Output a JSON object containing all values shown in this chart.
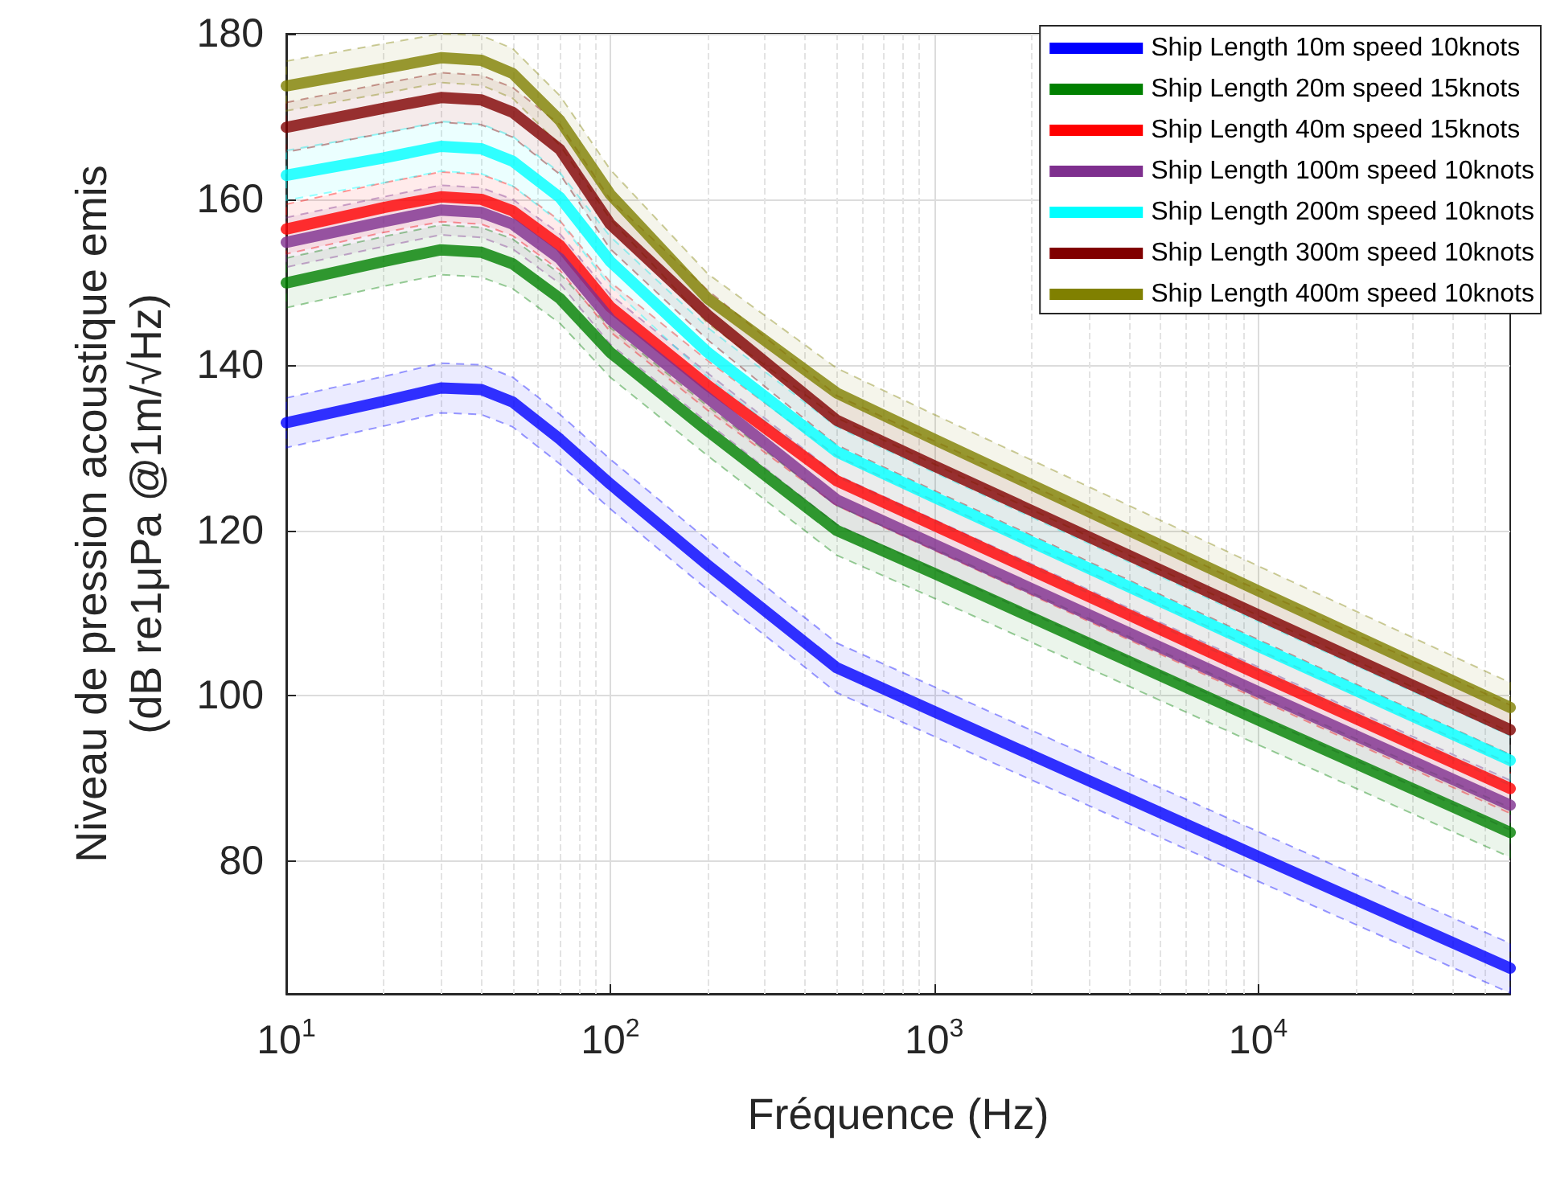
{
  "chart_data": {
    "type": "line",
    "xlabel": "Fréquence (Hz)",
    "ylabel": "Niveau de pression acoustique emis\n(dB re1μPa @1m/√Hz)",
    "x": [
      10,
      20,
      30,
      40,
      50,
      70,
      100,
      200,
      500,
      1000,
      10000,
      60000
    ],
    "log": "x",
    "xlim": [
      10,
      60000
    ],
    "xticks": [
      {
        "value": 10,
        "label": "10$^{1}$"
      },
      {
        "value": 100,
        "label": "10$^{2}$"
      },
      {
        "value": 1000,
        "label": "10$^{3}$"
      },
      {
        "value": 10000,
        "label": "10$^{4}$"
      }
    ],
    "ylim": [
      64,
      180
    ],
    "yticks": [
      80,
      100,
      120,
      140,
      160,
      180
    ],
    "grid": true,
    "legend": "top right",
    "line_style": "solid",
    "marker": "none",
    "series": [
      {
        "name": "Ship Length 10m speed 10knots",
        "color": "#0000ff",
        "values": [
          133,
          135.6,
          137.2,
          137,
          135.5,
          131,
          125.6,
          115.8,
          103.4,
          98.1,
          80.6,
          67.1
        ],
        "lower": [
          130,
          132.6,
          134.2,
          134,
          132.5,
          128,
          122.6,
          112.8,
          100.4,
          95.1,
          77.6,
          64.1
        ],
        "upper": [
          136,
          138.6,
          140.2,
          140,
          138.5,
          134,
          128.6,
          118.8,
          106.4,
          101.1,
          83.6,
          70.1
        ]
      },
      {
        "name": "Ship Length 20m speed 15knots",
        "color": "#008000",
        "values": [
          149.9,
          152.5,
          153.9,
          153.6,
          152.2,
          148,
          141.5,
          132,
          120,
          114.8,
          97.1,
          83.5
        ],
        "lower": [
          146.9,
          149.5,
          150.9,
          150.6,
          149.2,
          145,
          138.5,
          129,
          117,
          111.8,
          94.1,
          80.5
        ],
        "upper": [
          152.9,
          155.5,
          156.9,
          156.6,
          155.2,
          151,
          144.5,
          135,
          123,
          117.8,
          100.1,
          86.5
        ]
      },
      {
        "name": "Ship Length 40m speed 15knots",
        "color": "#ff0000",
        "values": [
          156.4,
          159,
          160.3,
          160,
          158.6,
          154.4,
          147,
          137.5,
          126,
          120.6,
          102.6,
          88.8
        ],
        "lower": [
          153.4,
          156,
          157.3,
          157,
          155.6,
          151.4,
          144,
          134.5,
          123,
          117.6,
          99.6,
          85.8
        ],
        "upper": [
          159.4,
          162,
          163.3,
          163,
          161.6,
          157.4,
          150,
          140.5,
          129,
          123.6,
          105.6,
          91.8
        ]
      },
      {
        "name": "Ship Length 100m speed 10knots",
        "color": "#7e2f8e",
        "values": [
          154.8,
          157.3,
          158.7,
          158.4,
          157,
          152.8,
          145.5,
          136,
          123.7,
          118.3,
          100.5,
          86.8
        ],
        "lower": [
          151.8,
          154.3,
          155.7,
          155.4,
          154,
          149.8,
          142.5,
          133,
          120.7,
          115.3,
          97.5,
          83.8
        ],
        "upper": [
          157.8,
          160.3,
          161.7,
          161.4,
          160,
          155.8,
          148.5,
          139,
          126.7,
          121.3,
          103.5,
          89.8
        ]
      },
      {
        "name": "Ship Length 200m speed 10knots",
        "color": "#00ffff",
        "values": [
          162.9,
          165,
          166.4,
          166.1,
          164.6,
          160.2,
          152.5,
          141.5,
          129.5,
          124,
          106,
          92.2
        ],
        "lower": [
          159.9,
          162,
          163.4,
          163.1,
          161.6,
          157.2,
          149.5,
          138.5,
          126.5,
          121,
          103,
          89.2
        ],
        "upper": [
          165.9,
          168,
          169.4,
          169.1,
          167.6,
          163.2,
          155.5,
          144.5,
          132.5,
          127,
          109,
          95.2
        ]
      },
      {
        "name": "Ship Length 300m speed 10knots",
        "color": "#800000",
        "values": [
          168.7,
          171,
          172.3,
          172,
          170.5,
          166,
          157,
          146,
          133.3,
          127.8,
          109.8,
          95.9
        ],
        "lower": [
          165.7,
          168,
          169.3,
          169,
          167.5,
          163,
          154,
          143,
          130.3,
          124.8,
          106.8,
          92.9
        ],
        "upper": [
          171.7,
          174,
          175.3,
          175,
          173.5,
          169,
          160,
          149,
          136.3,
          130.8,
          112.8,
          98.9
        ]
      },
      {
        "name": "Ship Length 400m speed 10knots",
        "color": "#808000",
        "values": [
          173.7,
          175.8,
          177.1,
          176.8,
          175.2,
          169.5,
          160.6,
          148,
          136.6,
          131,
          112.7,
          98.6
        ],
        "lower": [
          170.7,
          172.8,
          174.1,
          173.8,
          172.2,
          166.5,
          157.6,
          145,
          133.6,
          128,
          109.7,
          95.6
        ],
        "upper": [
          176.7,
          178.8,
          180,
          179.8,
          178.2,
          172.5,
          163.6,
          151,
          139.6,
          134,
          115.7,
          101.6
        ]
      }
    ]
  }
}
